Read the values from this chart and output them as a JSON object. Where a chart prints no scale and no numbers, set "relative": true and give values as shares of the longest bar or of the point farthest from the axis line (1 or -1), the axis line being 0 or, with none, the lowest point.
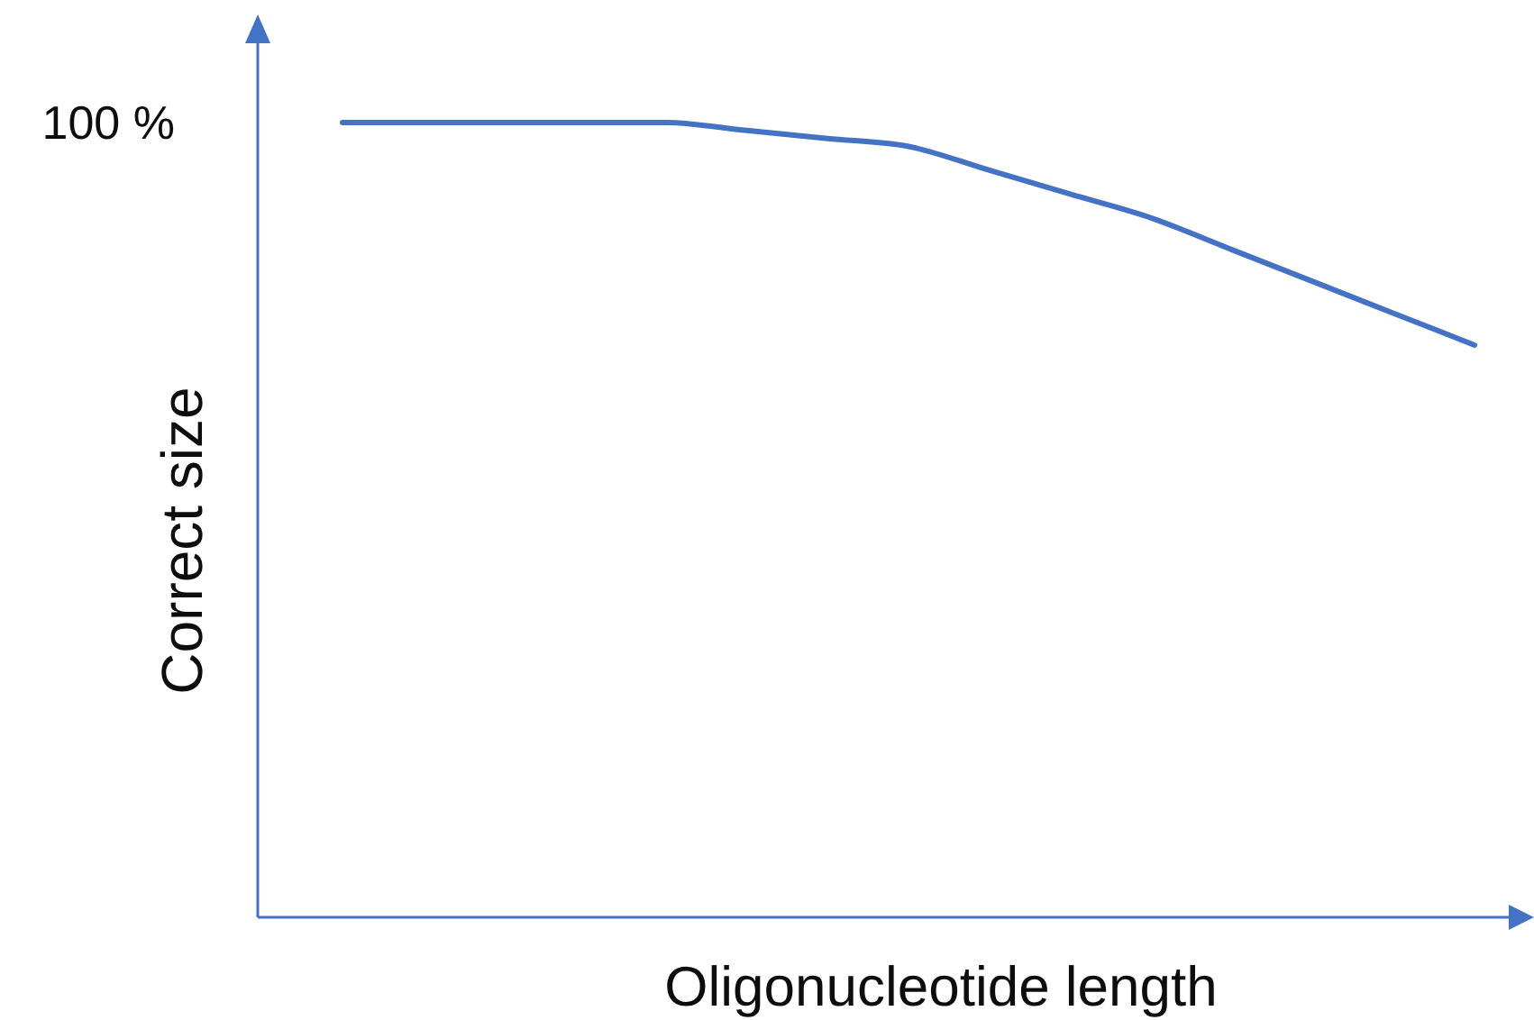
{
  "chart_data": {
    "type": "line",
    "xlabel": "Oligonucleotide length",
    "ylabel": "Correct size",
    "categories": [
      null,
      null,
      null,
      null,
      null,
      null,
      null,
      null,
      null,
      null,
      null,
      null,
      null,
      null,
      null
    ],
    "relative": true,
    "series": [
      {
        "color": "#4472c4",
        "values": [
          1,
          1,
          1,
          1,
          1,
          0.99,
          0.98,
          0.97,
          0.94,
          0.91,
          0.88,
          0.84,
          0.8,
          0.76,
          0.72
        ]
      }
    ],
    "annotations": [
      "100 %"
    ],
    "marker": "none",
    "line_style": "solid"
  }
}
